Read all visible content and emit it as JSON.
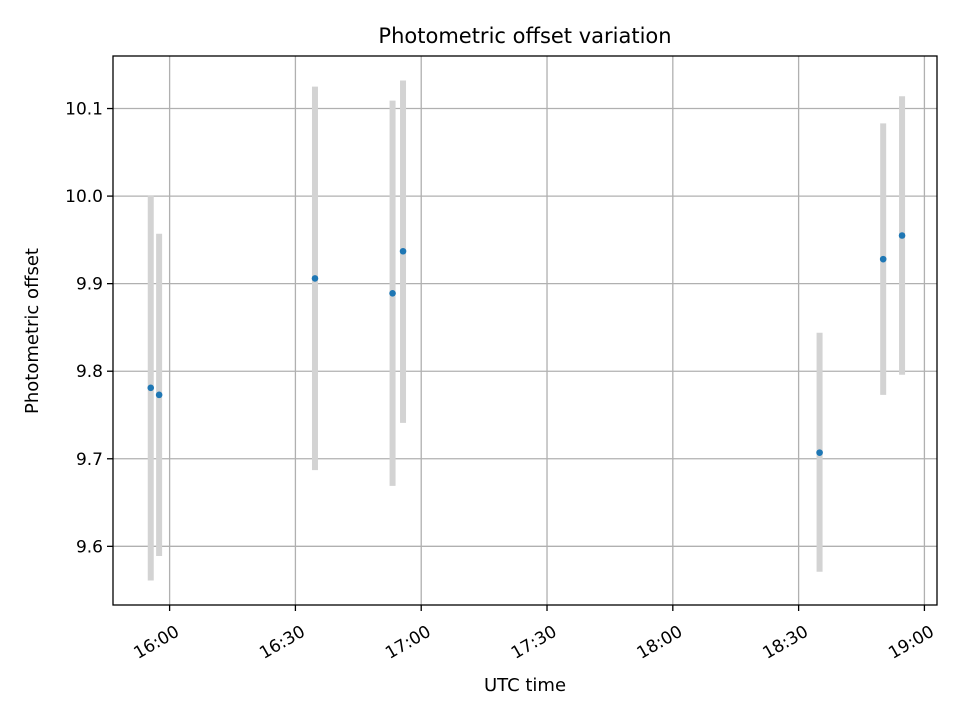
{
  "chart_data": {
    "type": "scatter",
    "title": "Photometric offset variation",
    "xlabel": "UTC time",
    "ylabel": "Photometric offset",
    "x_ticks": [
      "16:00",
      "16:30",
      "17:00",
      "17:30",
      "18:00",
      "18:30",
      "19:00"
    ],
    "y_ticks": [
      "9.6",
      "9.7",
      "9.8",
      "9.9",
      "10.0",
      "10.1"
    ],
    "y_tick_values": [
      9.6,
      9.7,
      9.8,
      9.9,
      10.0,
      10.1
    ],
    "xlim": [
      "15:46:30",
      "19:03:00"
    ],
    "ylim": [
      9.533,
      10.16
    ],
    "grid": true,
    "point_color": "#1f77b4",
    "errorbar_color": "#d3d3d3",
    "points": [
      {
        "x": "15:55:30",
        "y": 9.781,
        "yerr_low": 9.561,
        "yerr_high": 10.001
      },
      {
        "x": "15:57:30",
        "y": 9.773,
        "yerr_low": 9.589,
        "yerr_high": 9.957
      },
      {
        "x": "16:34:40",
        "y": 9.906,
        "yerr_low": 9.687,
        "yerr_high": 10.125
      },
      {
        "x": "16:53:10",
        "y": 9.889,
        "yerr_low": 9.669,
        "yerr_high": 10.109
      },
      {
        "x": "16:55:40",
        "y": 9.937,
        "yerr_low": 9.741,
        "yerr_high": 10.132
      },
      {
        "x": "18:35:00",
        "y": 9.707,
        "yerr_low": 9.571,
        "yerr_high": 9.844
      },
      {
        "x": "18:50:10",
        "y": 9.928,
        "yerr_low": 9.773,
        "yerr_high": 10.083
      },
      {
        "x": "18:54:40",
        "y": 9.955,
        "yerr_low": 9.796,
        "yerr_high": 10.114
      }
    ]
  }
}
